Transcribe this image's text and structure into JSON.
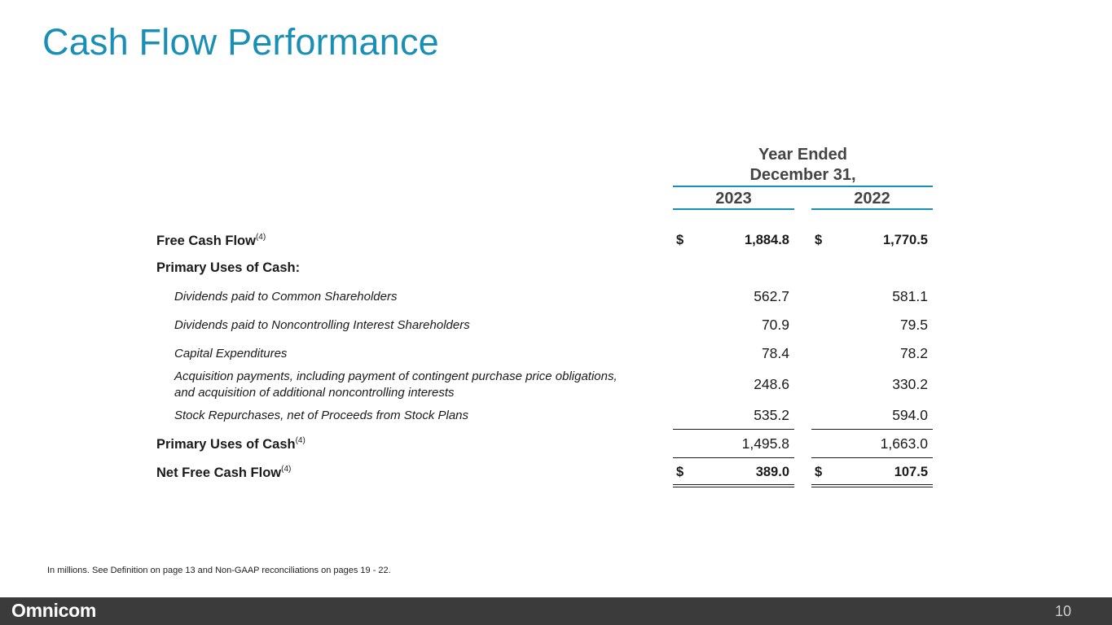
{
  "title": "Cash Flow Performance",
  "header": {
    "group_line1": "Year Ended",
    "group_line2": "December 31,",
    "years": [
      "2023",
      "2022"
    ]
  },
  "rows": {
    "free_cash_flow": {
      "label": "Free Cash Flow",
      "sup": "(4)",
      "currency": "$",
      "v2023": "1,884.8",
      "v2022": "1,770.5"
    },
    "primary_uses_heading": {
      "label": "Primary Uses of Cash:"
    },
    "dividends_common": {
      "label": "Dividends paid to Common Shareholders",
      "v2023": "562.7",
      "v2022": "581.1"
    },
    "dividends_noncontrolling": {
      "label": "Dividends paid to Noncontrolling Interest Shareholders",
      "v2023": "70.9",
      "v2022": "79.5"
    },
    "capex": {
      "label": "Capital Expenditures",
      "v2023": "78.4",
      "v2022": "78.2"
    },
    "acquisitions": {
      "label_line1": "Acquisition payments, including payment of contingent purchase price obligations,",
      "label_line2": "and acquisition of additional noncontrolling interests",
      "v2023": "248.6",
      "v2022": "330.2"
    },
    "repurchases": {
      "label": "Stock Repurchases, net of Proceeds from Stock Plans",
      "v2023": "535.2",
      "v2022": "594.0"
    },
    "primary_uses_total": {
      "label": "Primary Uses of Cash",
      "sup": "(4)",
      "v2023": "1,495.8",
      "v2022": "1,663.0"
    },
    "net_free_cash_flow": {
      "label": "Net Free Cash Flow",
      "sup": "(4)",
      "currency": "$",
      "v2023": "389.0",
      "v2022": "107.5"
    }
  },
  "footnote": "In millions.  See Definition on page 13 and Non-GAAP reconciliations on pages 19 - 22.",
  "footer": {
    "logo": "Omnicom",
    "page_number": "10"
  }
}
